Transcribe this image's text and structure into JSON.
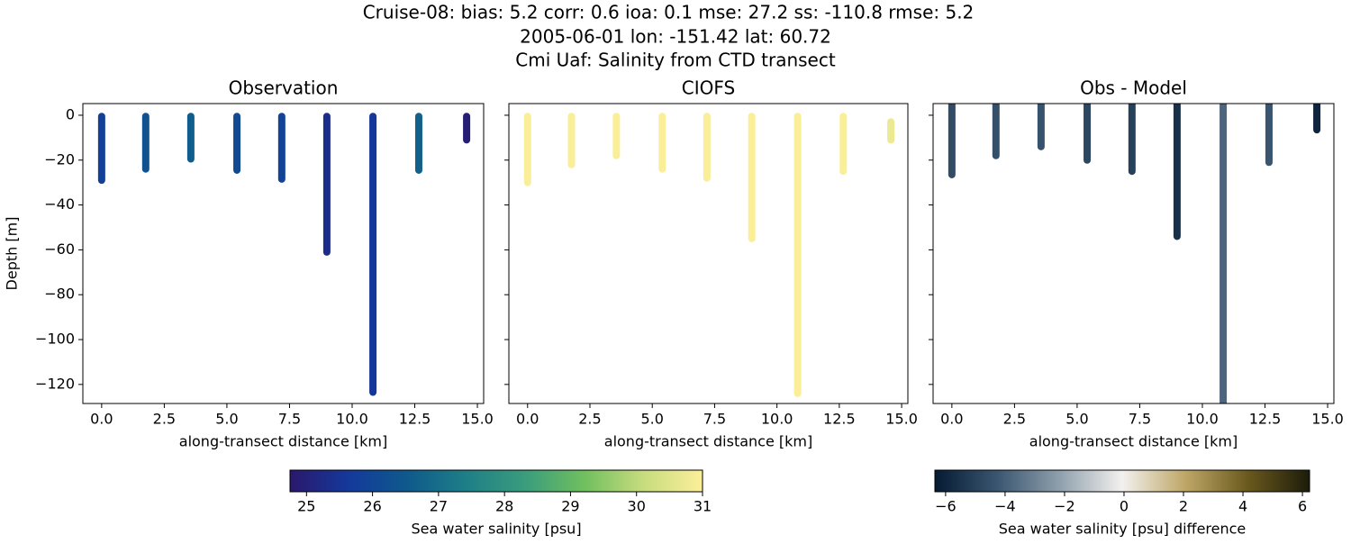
{
  "title_lines": [
    "Cruise-08: bias: 5.2  corr: 0.6  ioa: 0.1  mse: 27.2  ss: -110.8  rmse: 5.2",
    "2005-06-01 lon: -151.42 lat: 60.72",
    "Cmi Uaf: Salinity from CTD transect"
  ],
  "colormaps": {
    "haline": [
      "#2a186c",
      "#14399b",
      "#0e5a8c",
      "#1f7f87",
      "#3a9d7c",
      "#71bf5f",
      "#c7dc7e",
      "#fdef9a"
    ],
    "diff": [
      "#061a33",
      "#3a5670",
      "#8fa0ad",
      "#f3f1ee",
      "#bfa768",
      "#6b5a1e",
      "#1c1c0a"
    ]
  },
  "chart_data": [
    {
      "type": "transect",
      "title": "Observation",
      "xlabel": "along-transect distance [km]",
      "ylabel": "Depth [m]",
      "colormap": "haline",
      "clim": [
        24.75,
        31
      ],
      "xlim": [
        -0.75,
        15.25
      ],
      "ylim": [
        -128.5,
        5.2
      ],
      "xticks": [
        {
          "value": 0,
          "label": "0.0"
        },
        2.5,
        {
          "value": 5,
          "label": "5.0"
        },
        7.5,
        {
          "value": 10,
          "label": "10.0"
        },
        12.5,
        {
          "value": 15,
          "label": "15.0"
        }
      ],
      "yticks": [
        {
          "value": 0,
          "label": "0"
        },
        {
          "value": -20,
          "label": "−20"
        },
        {
          "value": -40,
          "label": "−40"
        },
        {
          "value": -60,
          "label": "−60"
        },
        {
          "value": -80,
          "label": "−80"
        },
        {
          "value": -100,
          "label": "−100"
        },
        {
          "value": -120,
          "label": "−120"
        }
      ],
      "show_ytick_labels": true,
      "casts": [
        {
          "x": 0,
          "top": -0.5,
          "bottom": -29,
          "value": 25.8
        },
        {
          "x": 1.76,
          "top": -0.5,
          "bottom": -24,
          "value": 26.3
        },
        {
          "x": 3.56,
          "top": -0.5,
          "bottom": -19.5,
          "value": 26.6
        },
        {
          "x": 5.4,
          "top": -0.5,
          "bottom": -24.5,
          "value": 26.1
        },
        {
          "x": 7.19,
          "top": -0.5,
          "bottom": -28.5,
          "value": 25.9
        },
        {
          "x": 8.99,
          "top": -0.5,
          "bottom": -61,
          "value": 25.3
        },
        {
          "x": 10.83,
          "top": -0.5,
          "bottom": -123.5,
          "value": 25.6
        },
        {
          "x": 12.66,
          "top": -0.5,
          "bottom": -24.5,
          "value": 26.7
        },
        {
          "x": 14.57,
          "top": -0.5,
          "bottom": -11,
          "value": 24.9
        }
      ],
      "colorbar": {
        "label": "Sea water salinity [psu]",
        "lim": [
          24.75,
          31
        ],
        "ticks": [
          25,
          26,
          27,
          28,
          29,
          30,
          31
        ]
      }
    },
    {
      "type": "transect",
      "title": "CIOFS",
      "xlabel": "along-transect distance [km]",
      "colormap": "haline",
      "clim": [
        24.75,
        31
      ],
      "xlim": [
        -0.75,
        15.25
      ],
      "ylim": [
        -128.5,
        5.2
      ],
      "xticks": [
        {
          "value": 0,
          "label": "0.0"
        },
        2.5,
        {
          "value": 5,
          "label": "5.0"
        },
        7.5,
        {
          "value": 10,
          "label": "10.0"
        },
        12.5,
        {
          "value": 15,
          "label": "15.0"
        }
      ],
      "yticks": [
        0,
        -20,
        -40,
        -60,
        -80,
        -100,
        -120
      ],
      "show_ytick_labels": false,
      "casts": [
        {
          "x": 0,
          "top": -0.5,
          "bottom": -30,
          "value": 30.95
        },
        {
          "x": 1.76,
          "top": -0.5,
          "bottom": -22,
          "value": 30.95
        },
        {
          "x": 3.56,
          "top": -0.5,
          "bottom": -18,
          "value": 30.95
        },
        {
          "x": 5.4,
          "top": -0.5,
          "bottom": -24,
          "value": 30.95
        },
        {
          "x": 7.19,
          "top": -0.5,
          "bottom": -28,
          "value": 30.95
        },
        {
          "x": 8.99,
          "top": -0.5,
          "bottom": -55,
          "value": 30.95
        },
        {
          "x": 10.83,
          "top": -0.5,
          "bottom": -124,
          "value": 30.95
        },
        {
          "x": 12.66,
          "top": -0.5,
          "bottom": -25,
          "value": 30.95
        },
        {
          "x": 14.57,
          "top": -3,
          "bottom": -11,
          "value": 30.7
        }
      ]
    },
    {
      "type": "transect",
      "title": "Obs - Model",
      "xlabel": "along-transect distance [km]",
      "colormap": "diff",
      "clim": [
        -6.36,
        6.24
      ],
      "xlim": [
        -0.75,
        15.25
      ],
      "ylim": [
        -128.5,
        5.2
      ],
      "xticks": [
        {
          "value": 0,
          "label": "0.0"
        },
        2.5,
        {
          "value": 5,
          "label": "5.0"
        },
        7.5,
        {
          "value": 10,
          "label": "10.0"
        },
        12.5,
        {
          "value": 15,
          "label": "15.0"
        }
      ],
      "yticks": [
        0,
        -20,
        -40,
        -60,
        -80,
        -100,
        -120
      ],
      "show_ytick_labels": false,
      "casts": [
        {
          "x": 0,
          "top": 6,
          "bottom": -26.5,
          "value": -4.6
        },
        {
          "x": 1.76,
          "top": 6,
          "bottom": -18,
          "value": -4.5
        },
        {
          "x": 3.56,
          "top": 6,
          "bottom": -14,
          "value": -4.4
        },
        {
          "x": 5.4,
          "top": 6,
          "bottom": -20,
          "value": -4.8
        },
        {
          "x": 7.19,
          "top": 6,
          "bottom": -25,
          "value": -5
        },
        {
          "x": 8.99,
          "top": 6,
          "bottom": -54,
          "value": -5.6
        },
        {
          "x": 10.83,
          "top": 6,
          "bottom": -131,
          "value": -3.8
        },
        {
          "x": 12.66,
          "top": 6,
          "bottom": -21,
          "value": -4.3
        },
        {
          "x": 14.57,
          "top": 6,
          "bottom": -6.5,
          "value": -6
        }
      ],
      "colorbar": {
        "label": "Sea water salinity [psu] difference",
        "lim": [
          -6.36,
          6.24
        ],
        "ticks": [
          {
            "value": -6,
            "label": "−6"
          },
          {
            "value": -4,
            "label": "−4"
          },
          {
            "value": -2,
            "label": "−2"
          },
          0,
          2,
          4,
          6
        ]
      }
    }
  ]
}
